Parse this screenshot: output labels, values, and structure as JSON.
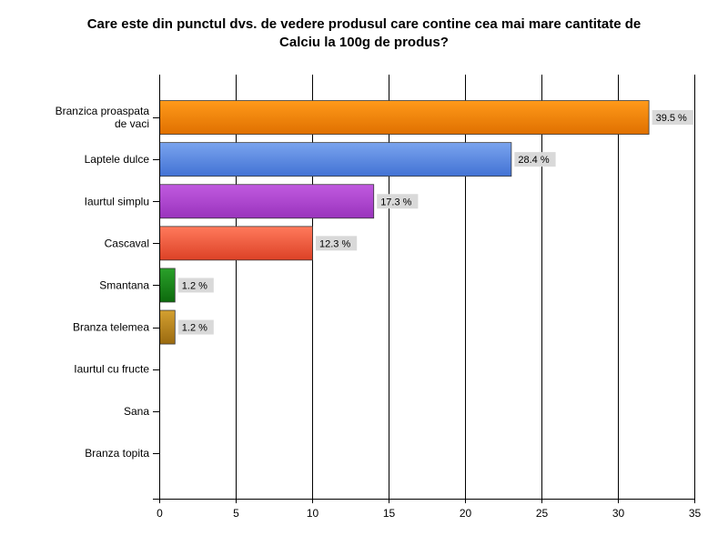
{
  "chart_data": {
    "type": "bar",
    "orientation": "horizontal",
    "title": "Care este din punctul dvs. de vedere produsul care contine cea mai mare cantitate de Calciu la 100g de produs?",
    "title_lines": [
      "Care este din punctul dvs. de vedere produsul care contine cea mai mare cantitate de",
      "Calciu la 100g de produs?"
    ],
    "categories": [
      [
        "Branzica proaspata",
        "de vaci"
      ],
      [
        "Laptele dulce"
      ],
      [
        "Iaurtul simplu"
      ],
      [
        "Cascaval"
      ],
      [
        "Smantana"
      ],
      [
        "Branza telemea"
      ],
      [
        "Iaurtul cu fructe"
      ],
      [
        "Sana"
      ],
      [
        "Branza topita"
      ]
    ],
    "values": [
      32,
      23,
      14,
      10,
      1,
      1,
      0,
      0,
      0
    ],
    "data_labels": [
      "39.5 %",
      "28.4 %",
      "17.3 %",
      "12.3 %",
      "1.2 %",
      "1.2 %",
      "",
      "",
      ""
    ],
    "colors": [
      [
        "#ff9a1a",
        "#e07000"
      ],
      [
        "#7aa4ee",
        "#4272d4"
      ],
      [
        "#c05ae0",
        "#9a34bc"
      ],
      [
        "#ff7a5c",
        "#dc4126"
      ],
      [
        "#2aa02a",
        "#0d6a0d"
      ],
      [
        "#d4a030",
        "#9a6a10"
      ],
      [
        "#999999",
        "#777777"
      ],
      [
        "#999999",
        "#777777"
      ],
      [
        "#999999",
        "#777777"
      ]
    ],
    "xlim": [
      0,
      35
    ],
    "xticks": [
      0,
      5,
      10,
      15,
      20,
      25,
      30,
      35
    ],
    "xlabel": "",
    "ylabel": "",
    "grid": true,
    "legend": "none"
  }
}
